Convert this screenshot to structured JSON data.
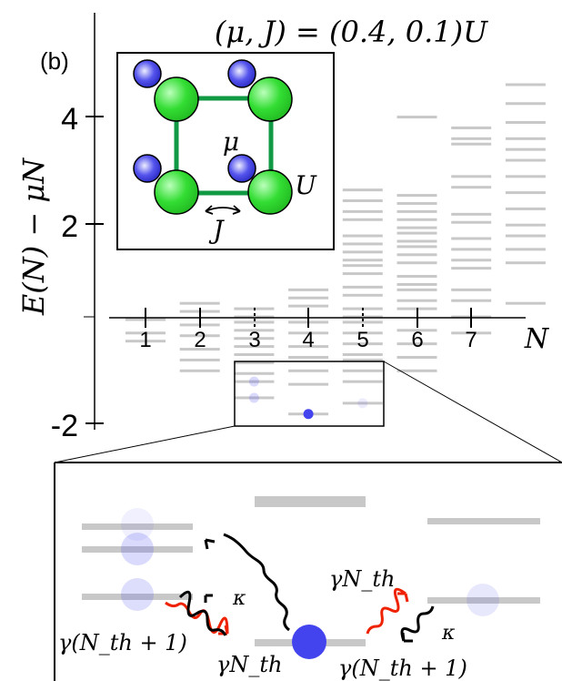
{
  "figure": {
    "panel_label": "(b)",
    "title": "(μ, J) = (0.4, 0.1)U",
    "ylabel": "E(N) − μN",
    "xlabel": "N",
    "y_ticks": [
      "4",
      "2",
      "-2"
    ],
    "x_ticks": [
      "1",
      "2",
      "3",
      "4",
      "5",
      "6",
      "7"
    ]
  },
  "inset": {
    "mu_label": "μ",
    "U_label": "U",
    "J_label": "J",
    "colors": {
      "site": "#33dd33",
      "particle": "#3333dd",
      "bond": "#119944"
    }
  },
  "zoom": {
    "labels": {
      "left_lower": "γ(N_th + 1)",
      "left_upper": "γN_th",
      "left_kappa": "κ",
      "right_upper": "γN_th",
      "right_kappa": "κ",
      "right_lower": "γ(N_th + 1)"
    },
    "colors": {
      "thermal": "#ee2200",
      "loss": "#000000",
      "level": "#c8c8c8",
      "state": "#4444ee"
    }
  },
  "chart_data": {
    "type": "scatter",
    "description_axes": {
      "x": "N",
      "y": "E(N) - μN"
    },
    "ylim": [
      -2.1,
      5.8
    ],
    "xlim": [
      0.3,
      8.0
    ],
    "series": [
      {
        "x": 1,
        "levels": [
          -0.05,
          -0.3,
          -0.45
        ]
      },
      {
        "x": 2,
        "levels": [
          0.25,
          0.1,
          -0.15,
          -0.35,
          -0.6,
          -0.8,
          -1.0
        ]
      },
      {
        "x": 3,
        "levels": [
          0.15,
          0.0,
          -0.1,
          -0.25,
          -0.4,
          -0.55,
          -0.7,
          -0.85,
          -1.05,
          -1.2,
          -1.5
        ]
      },
      {
        "x": 4,
        "levels": [
          1.6,
          1.5,
          1.4,
          1.3,
          0.5,
          0.35,
          0.2,
          -0.1,
          -0.3,
          -0.55,
          -0.75,
          -1.0,
          -1.25,
          -1.8
        ]
      },
      {
        "x": 5,
        "levels": [
          2.35,
          2.15,
          1.95,
          1.8,
          1.5,
          1.35,
          1.2,
          1.05,
          0.95,
          0.8,
          0.55,
          0.4,
          0.15,
          0.0,
          -0.1,
          -0.3,
          -0.5,
          -0.7,
          -0.8,
          -1.0,
          -1.2,
          -1.6
        ]
      },
      {
        "x": 6,
        "levels": [
          3.7,
          2.25,
          2.1,
          1.95,
          1.8,
          1.65,
          1.55,
          1.4,
          1.3,
          1.15,
          1.0,
          0.75,
          0.6,
          0.5,
          0.3,
          0.15,
          -0.25,
          -0.5,
          -0.75,
          -1.0
        ]
      },
      {
        "x": 7,
        "levels": [
          3.5,
          3.3,
          3.2,
          2.6,
          2.4,
          1.9,
          1.75,
          1.45,
          1.25,
          1.05,
          0.9,
          0.5,
          0.3,
          0.0,
          -0.3
        ]
      },
      {
        "x": 8,
        "levels": [
          4.3,
          3.95,
          3.6,
          3.3,
          3.1,
          2.9,
          2.6,
          2.3,
          2.0,
          1.7,
          1.5,
          1.25,
          1.0,
          0.25
        ]
      }
    ],
    "highlighted_states": [
      {
        "x": 3,
        "y": -1.2,
        "strength": 0.2
      },
      {
        "x": 3,
        "y": -1.5,
        "strength": 0.2
      },
      {
        "x": 4,
        "y": -1.8,
        "strength": 1.0
      },
      {
        "x": 5,
        "y": -1.6,
        "strength": 0.1
      }
    ]
  }
}
